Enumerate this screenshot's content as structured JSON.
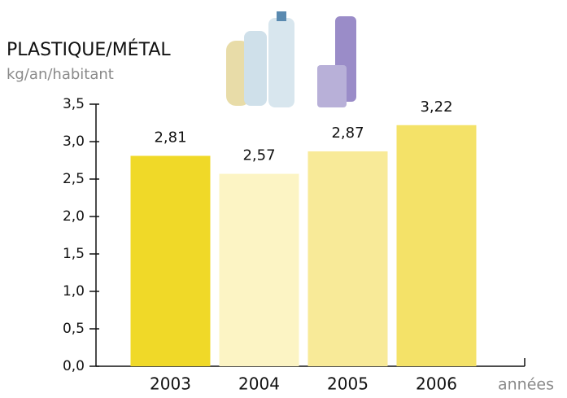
{
  "chart_data": {
    "type": "bar",
    "title": "PLASTIQUE/MÉTAL",
    "subtitle": "kg/an/habitant",
    "x_label": "années",
    "categories": [
      "2003",
      "2004",
      "2005",
      "2006"
    ],
    "values": [
      2.81,
      2.57,
      2.87,
      3.22
    ],
    "value_labels": [
      "2,81",
      "2,57",
      "2,87",
      "3,22"
    ],
    "colors": [
      "#f0d928",
      "#fcf4c4",
      "#f8ea98",
      "#f4e268"
    ],
    "ylim": [
      0,
      3.5
    ],
    "yticks": [
      {
        "value": 0,
        "label": "0,0"
      },
      {
        "value": 0.5,
        "label": "0,5"
      },
      {
        "value": 1,
        "label": "1,0"
      },
      {
        "value": 1.5,
        "label": "1,5"
      },
      {
        "value": 2,
        "label": "2,0"
      },
      {
        "value": 2.5,
        "label": "2,5"
      },
      {
        "value": 3,
        "label": "3,0"
      },
      {
        "value": 3.5,
        "label": "3,5"
      }
    ]
  }
}
